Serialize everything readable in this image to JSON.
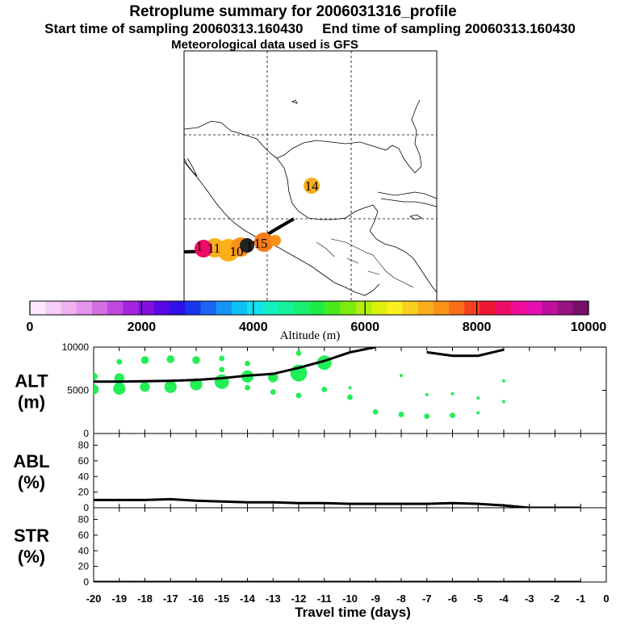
{
  "title": "Retroplume summary for 2006031316_profile",
  "subtitle": "Start time of sampling 20060313.160430     End time of sampling 20060313.160430",
  "met_line": "Meteorological data used is GFS",
  "colorbar": {
    "label": "Altitude (m)",
    "ticks": [
      "0",
      "2000",
      "4000",
      "6000",
      "8000",
      "10000"
    ],
    "min": 0,
    "max": 10000,
    "colors": [
      "#fde8fd",
      "#f6cdf6",
      "#eeb3ee",
      "#e396eb",
      "#d46ee3",
      "#c047e0",
      "#a424e0",
      "#8210de",
      "#5a08e6",
      "#3010ea",
      "#1838f0",
      "#1c64f2",
      "#1694f4",
      "#0ec0f6",
      "#10e2f0",
      "#14f0c4",
      "#16f09a",
      "#18ee72",
      "#20ea48",
      "#48ea1c",
      "#7cec10",
      "#b0ee0c",
      "#dcf00c",
      "#faf020",
      "#fad020",
      "#fab01c",
      "#fa921a",
      "#fa6e18",
      "#f4401c",
      "#ee1634",
      "#ee0c66",
      "#f00c96",
      "#e410b4",
      "#c00e9e",
      "#981282",
      "#761068"
    ]
  },
  "map": {
    "cluster_labels": [
      "14",
      "15",
      "11",
      "10",
      "1",
      "1"
    ]
  },
  "chart_data": [
    {
      "type": "line",
      "name": "ALT",
      "ylabel_lines": [
        "ALT",
        "(m)"
      ],
      "yticks": [
        "0",
        "5000",
        "10000"
      ],
      "ylim": [
        0,
        10000
      ],
      "xlim": [
        -20,
        0
      ],
      "x": [
        -20,
        -19,
        -18,
        -17,
        -16,
        -15,
        -14,
        -13,
        -12,
        -11,
        -10,
        -9
      ],
      "y": [
        6000,
        6000,
        6050,
        6100,
        6200,
        6400,
        6700,
        6900,
        7600,
        8400,
        9400,
        10000
      ],
      "x2": [
        -7,
        -6,
        -5,
        -4
      ],
      "y2": [
        9400,
        9000,
        9000,
        9700
      ],
      "bubbles": [
        {
          "x": -20,
          "y": 5100,
          "size": 4
        },
        {
          "x": -20,
          "y": 6600,
          "size": 3
        },
        {
          "x": -19,
          "y": 5200,
          "size": 5
        },
        {
          "x": -19,
          "y": 6400,
          "size": 4
        },
        {
          "x": -19,
          "y": 8300,
          "size": 2
        },
        {
          "x": -18,
          "y": 5400,
          "size": 4
        },
        {
          "x": -18,
          "y": 8500,
          "size": 3
        },
        {
          "x": -17,
          "y": 5400,
          "size": 5
        },
        {
          "x": -17,
          "y": 8600,
          "size": 3
        },
        {
          "x": -16,
          "y": 5700,
          "size": 5
        },
        {
          "x": -16,
          "y": 8500,
          "size": 3
        },
        {
          "x": -15,
          "y": 6000,
          "size": 6
        },
        {
          "x": -15,
          "y": 7400,
          "size": 2
        },
        {
          "x": -15,
          "y": 8700,
          "size": 2
        },
        {
          "x": -14,
          "y": 6600,
          "size": 5
        },
        {
          "x": -14,
          "y": 5300,
          "size": 2
        },
        {
          "x": -14,
          "y": 8100,
          "size": 2
        },
        {
          "x": -13,
          "y": 6500,
          "size": 4
        },
        {
          "x": -13,
          "y": 4800,
          "size": 2
        },
        {
          "x": -12,
          "y": 7000,
          "size": 7
        },
        {
          "x": -12,
          "y": 4400,
          "size": 2
        },
        {
          "x": -12,
          "y": 9300,
          "size": 2
        },
        {
          "x": -11,
          "y": 8200,
          "size": 6
        },
        {
          "x": -11,
          "y": 5100,
          "size": 2
        },
        {
          "x": -10,
          "y": 4200,
          "size": 2
        },
        {
          "x": -10,
          "y": 5300,
          "size": 1
        },
        {
          "x": -9,
          "y": 2500,
          "size": 2
        },
        {
          "x": -8,
          "y": 2200,
          "size": 2
        },
        {
          "x": -8,
          "y": 6700,
          "size": 1
        },
        {
          "x": -7,
          "y": 2000,
          "size": 2
        },
        {
          "x": -7,
          "y": 4500,
          "size": 1
        },
        {
          "x": -6,
          "y": 2100,
          "size": 2
        },
        {
          "x": -6,
          "y": 4600,
          "size": 1
        },
        {
          "x": -5,
          "y": 2400,
          "size": 1
        },
        {
          "x": -5,
          "y": 4100,
          "size": 1
        },
        {
          "x": -4,
          "y": 6100,
          "size": 1
        },
        {
          "x": -4,
          "y": 3700,
          "size": 1
        }
      ],
      "bubble_color": "#22ee55"
    },
    {
      "type": "line",
      "name": "ABL",
      "ylabel_lines": [
        "ABL",
        "(%)"
      ],
      "yticks": [
        "0",
        "20",
        "40",
        "60",
        "80"
      ],
      "ylim": [
        0,
        95
      ],
      "xlim": [
        -20,
        0
      ],
      "x": [
        -20,
        -19,
        -18,
        -17,
        -16,
        -15,
        -14,
        -13,
        -12,
        -11,
        -10,
        -9,
        -8,
        -7,
        -6,
        -5,
        -4,
        -3,
        -2,
        -1
      ],
      "y": [
        10,
        10,
        10,
        11,
        9,
        8,
        7,
        7,
        6,
        6,
        5,
        5,
        5,
        5,
        6,
        5,
        3,
        0,
        0,
        0
      ]
    },
    {
      "type": "line",
      "name": "STR",
      "ylabel_lines": [
        "STR",
        "(%)"
      ],
      "yticks": [
        "0",
        "20",
        "40",
        "60",
        "80"
      ],
      "ylim": [
        0,
        95
      ],
      "xlim": [
        -20,
        0
      ],
      "x": [
        -20,
        -19,
        -18,
        -17,
        -16,
        -15,
        -14,
        -13,
        -12,
        -11,
        -10,
        -9,
        -8,
        -7,
        -6,
        -5,
        -4,
        -3,
        -2,
        -1
      ],
      "y": [
        0,
        0,
        0,
        0,
        0,
        0,
        0,
        0,
        0,
        0,
        0,
        0,
        0,
        0,
        0,
        0,
        0,
        0,
        0,
        0
      ]
    }
  ],
  "x_axis": {
    "ticks": [
      "-20",
      "-19",
      "-18",
      "-17",
      "-16",
      "-15",
      "-14",
      "-13",
      "-12",
      "-11",
      "-10",
      "-9",
      "-8",
      "-7",
      "-6",
      "-5",
      "-4",
      "-3",
      "-2",
      "-1",
      "0"
    ],
    "label": "Travel time (days)"
  }
}
